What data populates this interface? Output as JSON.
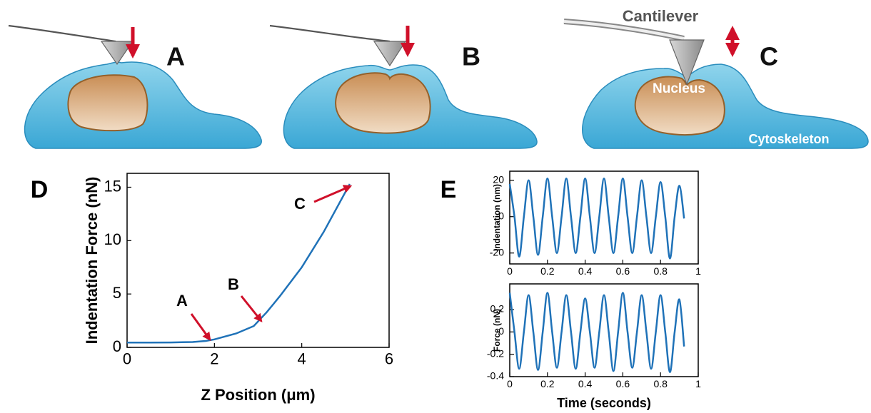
{
  "illustration": {
    "panels": [
      {
        "label": "A"
      },
      {
        "label": "B"
      },
      {
        "label": "C"
      }
    ],
    "cantilever": "Cantilever",
    "nucleus": "Nucleus",
    "cytoskeleton": "Cytoskeleton"
  },
  "chart_data": [
    {
      "type": "line",
      "panel_label": "D",
      "xlabel": "Z Position (μm)",
      "ylabel": "Indentation Force (nN)",
      "color": "#1f72b8",
      "x": [
        0,
        0.5,
        1,
        1.5,
        1.8,
        2,
        2.5,
        2.9,
        3.2,
        3.5,
        4,
        4.5,
        5.1
      ],
      "values": [
        0.45,
        0.45,
        0.46,
        0.5,
        0.6,
        0.75,
        1.3,
        2.0,
        3.3,
        4.8,
        7.5,
        10.8,
        15.3
      ],
      "xlim": [
        0,
        6
      ],
      "xticks": [
        0,
        2,
        4,
        6
      ],
      "ylim": [
        0,
        16.3
      ],
      "yticks": [
        0,
        5,
        10,
        15
      ],
      "annotations": [
        "A",
        "B",
        "C"
      ]
    },
    {
      "type": "line",
      "panel_label": "E",
      "ylabel": "Indentation (nm)",
      "color": "#1f72b8",
      "x": [
        0,
        0.025,
        0.05,
        0.075,
        0.1,
        0.125,
        0.15,
        0.175,
        0.2,
        0.225,
        0.25,
        0.275,
        0.3,
        0.325,
        0.35,
        0.375,
        0.4,
        0.425,
        0.45,
        0.475,
        0.5,
        0.525,
        0.55,
        0.575,
        0.6,
        0.625,
        0.65,
        0.675,
        0.7,
        0.725,
        0.75,
        0.775,
        0.8,
        0.825,
        0.85,
        0.875,
        0.9,
        0.925
      ],
      "values": [
        18,
        0,
        -22,
        0,
        20,
        0,
        -21,
        0,
        21,
        0,
        -20,
        0,
        21,
        0,
        -20,
        0,
        21,
        0,
        -20,
        0,
        21,
        0,
        -20,
        0,
        21,
        0,
        -20,
        0,
        20,
        0,
        -20,
        0,
        19,
        0,
        -23,
        0,
        17,
        -1
      ],
      "xlim": [
        0,
        1
      ],
      "xticks": [
        0,
        0.2,
        0.4,
        0.6,
        0.8,
        1
      ],
      "ylim": [
        -26,
        25
      ],
      "yticks": [
        -20,
        0,
        20
      ]
    },
    {
      "type": "line",
      "ylabel": "Force (nN)",
      "xlabel": "Time (seconds)",
      "color": "#1f72b8",
      "x": [
        0,
        0.025,
        0.05,
        0.075,
        0.1,
        0.125,
        0.15,
        0.175,
        0.2,
        0.225,
        0.25,
        0.275,
        0.3,
        0.325,
        0.35,
        0.375,
        0.4,
        0.425,
        0.45,
        0.475,
        0.5,
        0.525,
        0.55,
        0.575,
        0.6,
        0.625,
        0.65,
        0.675,
        0.7,
        0.725,
        0.75,
        0.775,
        0.8,
        0.825,
        0.85,
        0.875,
        0.9,
        0.925
      ],
      "values": [
        0.35,
        0,
        -0.33,
        0,
        0.33,
        0,
        -0.34,
        0,
        0.35,
        0,
        -0.32,
        0,
        0.33,
        0,
        -0.33,
        0,
        0.3,
        0,
        -0.32,
        0,
        0.33,
        0,
        -0.35,
        0,
        0.35,
        0,
        -0.32,
        0,
        0.33,
        0,
        -0.33,
        0,
        0.33,
        0,
        -0.36,
        0,
        0.29,
        -0.13
      ],
      "xlim": [
        0,
        1
      ],
      "xticks": [
        0,
        0.2,
        0.4,
        0.6,
        0.8,
        1
      ],
      "ylim": [
        -0.4,
        0.43
      ],
      "yticks": [
        -0.4,
        -0.2,
        0,
        0.2
      ]
    }
  ]
}
